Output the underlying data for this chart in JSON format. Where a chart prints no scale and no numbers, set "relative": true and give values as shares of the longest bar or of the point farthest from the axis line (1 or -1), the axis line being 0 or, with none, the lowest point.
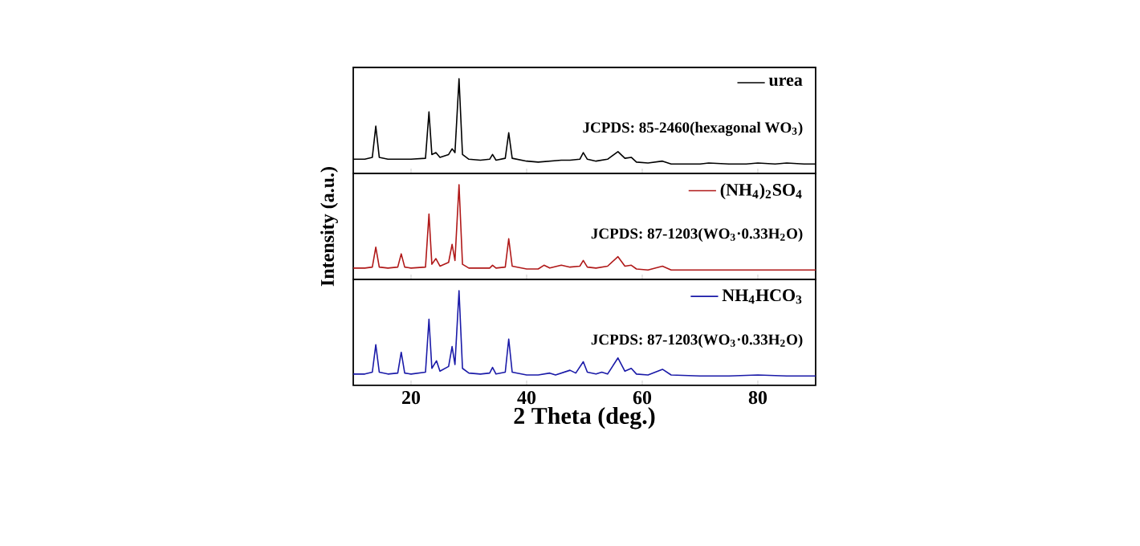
{
  "chart_data": [
    {
      "type": "line",
      "relative": true,
      "xlim": [
        10,
        90
      ],
      "xticks": [
        20,
        40,
        60,
        80
      ],
      "tick_labels": false,
      "legend": "top right",
      "annotations": [
        "JCPDS: 85-2460(hexagonal WO$_{3}$)"
      ],
      "series": [
        {
          "name": "urea",
          "color": "#000000",
          "x": [
            10,
            12,
            13.3,
            13.9,
            14.5,
            16,
            18,
            20,
            22.5,
            23.1,
            23.6,
            24.3,
            25,
            26.5,
            27.1,
            27.6,
            28.3,
            28.9,
            30,
            32,
            33.6,
            34.1,
            34.7,
            36.3,
            36.9,
            37.5,
            40,
            42,
            44,
            46,
            47.5,
            49.2,
            49.8,
            50.5,
            52,
            54,
            55.8,
            57,
            58.1,
            59,
            61,
            63.5,
            65,
            70,
            71.5,
            75,
            78,
            80,
            83,
            85,
            88,
            90
          ],
          "values": [
            0.15,
            0.15,
            0.17,
            0.5,
            0.17,
            0.15,
            0.15,
            0.15,
            0.16,
            0.65,
            0.2,
            0.22,
            0.17,
            0.2,
            0.26,
            0.22,
            1.0,
            0.2,
            0.15,
            0.14,
            0.15,
            0.2,
            0.14,
            0.16,
            0.43,
            0.16,
            0.13,
            0.12,
            0.13,
            0.14,
            0.14,
            0.15,
            0.22,
            0.15,
            0.13,
            0.15,
            0.23,
            0.16,
            0.17,
            0.12,
            0.11,
            0.13,
            0.1,
            0.1,
            0.11,
            0.1,
            0.1,
            0.11,
            0.1,
            0.11,
            0.1,
            0.1
          ]
        }
      ]
    },
    {
      "type": "line",
      "relative": true,
      "xlim": [
        10,
        90
      ],
      "xticks": [
        20,
        40,
        60,
        80
      ],
      "tick_labels": false,
      "legend": "top right",
      "ylabel": "Intensity (a.u.)",
      "annotations": [
        "JCPDS: 87-1203(WO$_{3}$·0.33H$_{2}$O)"
      ],
      "series": [
        {
          "name": "(NH$_{4}$)$_{2}$SO$_{4}$",
          "color": "#b01818",
          "x": [
            10,
            12,
            13.3,
            13.9,
            14.5,
            16,
            17.7,
            18.3,
            18.9,
            20,
            22.5,
            23.1,
            23.6,
            24.3,
            25,
            26.5,
            27.1,
            27.6,
            28.3,
            28.9,
            30,
            32,
            33.6,
            34.1,
            34.7,
            36.3,
            36.9,
            37.5,
            40,
            42,
            43,
            44,
            46,
            47.5,
            49.2,
            49.8,
            50.5,
            52,
            54,
            55.8,
            57,
            58.1,
            59,
            61,
            63.5,
            65,
            70,
            75,
            80,
            85,
            90
          ],
          "values": [
            0.12,
            0.12,
            0.13,
            0.34,
            0.13,
            0.12,
            0.13,
            0.27,
            0.13,
            0.12,
            0.13,
            0.69,
            0.16,
            0.22,
            0.14,
            0.18,
            0.37,
            0.2,
            1.0,
            0.16,
            0.12,
            0.12,
            0.12,
            0.15,
            0.12,
            0.13,
            0.43,
            0.14,
            0.11,
            0.11,
            0.15,
            0.12,
            0.15,
            0.13,
            0.14,
            0.2,
            0.13,
            0.12,
            0.14,
            0.24,
            0.14,
            0.15,
            0.11,
            0.1,
            0.14,
            0.1,
            0.1,
            0.1,
            0.1,
            0.1,
            0.1
          ]
        }
      ]
    },
    {
      "type": "line",
      "relative": true,
      "xlim": [
        10,
        90
      ],
      "xticks": [
        20,
        40,
        60,
        80
      ],
      "tick_labels": "x",
      "legend": "top right",
      "xlabel": "2 Theta (deg.)",
      "annotations": [
        "JCPDS: 87-1203(WO$_{3}$·0.33H$_{2}$O)"
      ],
      "series": [
        {
          "name": "NH$_{4}$HCO$_{3}$",
          "color": "#1a1aa8",
          "x": [
            10,
            12,
            13.3,
            13.9,
            14.5,
            16,
            17.7,
            18.3,
            18.9,
            20,
            22.5,
            23.1,
            23.6,
            24.4,
            25,
            26.5,
            27.1,
            27.6,
            28.3,
            28.9,
            30,
            32,
            33.6,
            34.1,
            34.7,
            36.3,
            36.9,
            37.5,
            40,
            42,
            44,
            45,
            47.5,
            48.5,
            49.8,
            50.5,
            52,
            53,
            54,
            55.8,
            57,
            58.1,
            59,
            61,
            63.5,
            65,
            70,
            75,
            80,
            85,
            90
          ],
          "values": [
            0.12,
            0.12,
            0.14,
            0.43,
            0.14,
            0.12,
            0.13,
            0.35,
            0.13,
            0.12,
            0.14,
            0.7,
            0.18,
            0.26,
            0.15,
            0.2,
            0.41,
            0.22,
            1.0,
            0.18,
            0.13,
            0.12,
            0.13,
            0.19,
            0.12,
            0.14,
            0.49,
            0.14,
            0.11,
            0.11,
            0.13,
            0.11,
            0.16,
            0.13,
            0.25,
            0.14,
            0.12,
            0.14,
            0.12,
            0.29,
            0.15,
            0.18,
            0.12,
            0.11,
            0.17,
            0.11,
            0.1,
            0.1,
            0.11,
            0.1,
            0.1
          ]
        }
      ]
    }
  ]
}
